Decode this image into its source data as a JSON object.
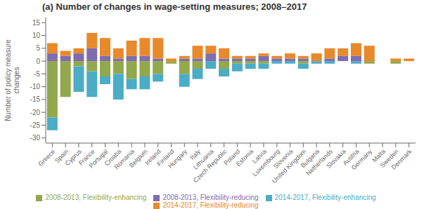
{
  "chart_data": {
    "type": "bar",
    "title": "(a) Number of changes in wage-setting measures; 2008–2017",
    "ylabel": "Number of policy measure\nchanges",
    "categories": [
      "Greece",
      "Spain",
      "Cyprus",
      "France",
      "Portugal",
      "Croatia",
      "Romania",
      "Belgium",
      "Ireland",
      "Finland",
      "Hungary",
      "Italy",
      "Lithuania",
      "Czech Republic",
      "Poland",
      "Estonia",
      "Latvia",
      "Luxembourg",
      "Slovenia",
      "United Kingdom",
      "Bulgaria",
      "Netherlands",
      "Slovakia",
      "Austria",
      "Germany",
      "Malta",
      "Sweden",
      "Denmark"
    ],
    "series": [
      {
        "name": "2008-2013, Flexibility-enhancing",
        "color": "#92a84c",
        "values": [
          -22,
          -14,
          -2,
          -4,
          -6,
          -5,
          -7,
          -6,
          -5,
          -1,
          -5,
          -3,
          0,
          -3,
          -1,
          -1,
          -1,
          0,
          0,
          -1,
          0,
          0,
          0,
          0,
          -1,
          0,
          -1,
          0
        ]
      },
      {
        "name": "2008-2013, Flexibility-reducing",
        "color": "#7f6db0",
        "values": [
          3,
          2,
          3,
          5,
          2,
          1,
          2,
          2,
          1,
          0,
          1,
          1,
          3,
          1,
          1,
          1,
          2,
          1,
          1,
          1,
          0,
          1,
          2,
          2,
          0,
          0,
          0,
          0
        ]
      },
      {
        "name": "2014-2017, Flexibility-enhancing",
        "color": "#4bacc6",
        "values": [
          -5,
          0,
          -10,
          -10,
          -3,
          -10,
          -4,
          -5,
          -3,
          0,
          -5,
          -4,
          -3,
          -3,
          -3,
          -2,
          -2,
          -1,
          -1,
          -2,
          -1,
          -1,
          0,
          -1,
          0,
          0,
          0,
          0
        ]
      },
      {
        "name": "2014-2017, Flexibility-reducing",
        "color": "#e8892b",
        "values": [
          4,
          2,
          2,
          6,
          7,
          4,
          6,
          7,
          8,
          1,
          1,
          5,
          3,
          4,
          1,
          1,
          1,
          1,
          2,
          1,
          3,
          4,
          3,
          5,
          6,
          0,
          1,
          1
        ]
      }
    ],
    "stacked": true,
    "ylim": [
      -32,
      17
    ],
    "yticks": [
      -30,
      -25,
      -20,
      -15,
      -10,
      -5,
      0,
      5,
      10,
      15
    ],
    "grid": false,
    "legend": "bottom"
  }
}
